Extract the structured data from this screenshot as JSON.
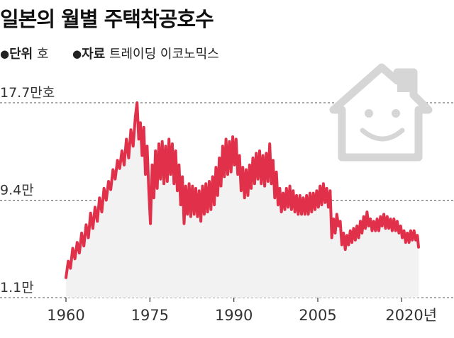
{
  "header": {
    "title": "일본의 월별 주택착공호수",
    "unit_key": "단위",
    "unit_value": "호",
    "source_key": "자료",
    "source_value": "트레이딩 이코노믹스",
    "bullet": "●"
  },
  "icon": "house-smiley-icon",
  "colors": {
    "line": "#e0304a",
    "area": "#f2f2f2",
    "grid": "#555555",
    "axis": "#333333",
    "icon": "#d6d6d6"
  },
  "chart_data": {
    "type": "line",
    "title": "일본의 월별 주택착공호수",
    "ylabel": "",
    "xlabel": "",
    "y_ticks": [
      {
        "value": 1.1,
        "label": "1.1만"
      },
      {
        "value": 9.4,
        "label": "9.4만"
      },
      {
        "value": 17.7,
        "label": "17.7만호"
      }
    ],
    "x_ticks": [
      {
        "value": 1960,
        "label": "1960"
      },
      {
        "value": 1975,
        "label": "1975"
      },
      {
        "value": 1990,
        "label": "1990"
      },
      {
        "value": 2005,
        "label": "2005"
      },
      {
        "value": 2020,
        "label": "2020년"
      }
    ],
    "xlim": [
      1960,
      2023
    ],
    "ylim": [
      1.1,
      17.7
    ],
    "grid": "dashed horizontal at y-ticks",
    "series": [
      {
        "unit": "만호",
        "points": [
          [
            1960.0,
            2.8
          ],
          [
            1960.4,
            4.2
          ],
          [
            1960.8,
            3.6
          ],
          [
            1961.2,
            5.3
          ],
          [
            1961.6,
            4.4
          ],
          [
            1962.0,
            5.8
          ],
          [
            1962.4,
            4.9
          ],
          [
            1962.8,
            6.6
          ],
          [
            1963.2,
            5.5
          ],
          [
            1963.6,
            7.3
          ],
          [
            1964.0,
            6.2
          ],
          [
            1964.4,
            8.3
          ],
          [
            1964.8,
            7.0
          ],
          [
            1965.2,
            8.8
          ],
          [
            1965.6,
            7.6
          ],
          [
            1966.0,
            9.6
          ],
          [
            1966.4,
            8.4
          ],
          [
            1966.8,
            10.4
          ],
          [
            1967.2,
            9.4
          ],
          [
            1967.6,
            11.0
          ],
          [
            1968.0,
            10.3
          ],
          [
            1968.4,
            12.0
          ],
          [
            1968.8,
            11.2
          ],
          [
            1969.2,
            12.8
          ],
          [
            1969.6,
            12.1
          ],
          [
            1970.0,
            13.6
          ],
          [
            1970.4,
            12.4
          ],
          [
            1970.8,
            14.6
          ],
          [
            1971.2,
            13.0
          ],
          [
            1971.6,
            15.4
          ],
          [
            1972.0,
            14.0
          ],
          [
            1972.4,
            16.5
          ],
          [
            1972.7,
            17.7
          ],
          [
            1973.0,
            14.6
          ],
          [
            1973.3,
            16.0
          ],
          [
            1973.6,
            13.2
          ],
          [
            1973.9,
            15.6
          ],
          [
            1974.2,
            11.6
          ],
          [
            1974.5,
            14.0
          ],
          [
            1974.8,
            10.2
          ],
          [
            1975.1,
            7.4
          ],
          [
            1975.4,
            12.4
          ],
          [
            1975.7,
            9.6
          ],
          [
            1976.0,
            13.6
          ],
          [
            1976.3,
            10.4
          ],
          [
            1976.6,
            14.2
          ],
          [
            1976.9,
            11.2
          ],
          [
            1977.2,
            14.4
          ],
          [
            1977.5,
            10.8
          ],
          [
            1977.8,
            14.0
          ],
          [
            1978.1,
            11.0
          ],
          [
            1978.4,
            14.6
          ],
          [
            1978.7,
            11.6
          ],
          [
            1979.0,
            14.2
          ],
          [
            1979.3,
            10.8
          ],
          [
            1979.6,
            13.6
          ],
          [
            1979.9,
            10.2
          ],
          [
            1980.2,
            12.4
          ],
          [
            1980.5,
            9.0
          ],
          [
            1980.8,
            11.4
          ],
          [
            1981.1,
            7.4
          ],
          [
            1981.4,
            10.6
          ],
          [
            1981.7,
            8.2
          ],
          [
            1982.0,
            10.8
          ],
          [
            1982.3,
            8.0
          ],
          [
            1982.6,
            10.6
          ],
          [
            1982.9,
            8.2
          ],
          [
            1983.2,
            10.4
          ],
          [
            1983.5,
            8.0
          ],
          [
            1983.8,
            10.2
          ],
          [
            1984.1,
            7.6
          ],
          [
            1984.4,
            10.6
          ],
          [
            1984.7,
            8.2
          ],
          [
            1985.0,
            10.8
          ],
          [
            1985.3,
            8.4
          ],
          [
            1985.6,
            11.0
          ],
          [
            1985.9,
            8.6
          ],
          [
            1986.2,
            11.4
          ],
          [
            1986.5,
            9.0
          ],
          [
            1986.8,
            12.2
          ],
          [
            1987.1,
            9.8
          ],
          [
            1987.4,
            13.0
          ],
          [
            1987.7,
            10.6
          ],
          [
            1988.0,
            14.0
          ],
          [
            1988.3,
            11.4
          ],
          [
            1988.6,
            14.6
          ],
          [
            1988.9,
            11.6
          ],
          [
            1989.2,
            14.4
          ],
          [
            1989.5,
            11.8
          ],
          [
            1989.8,
            14.8
          ],
          [
            1990.1,
            12.4
          ],
          [
            1990.4,
            14.6
          ],
          [
            1990.7,
            11.6
          ],
          [
            1991.0,
            13.2
          ],
          [
            1991.3,
            10.2
          ],
          [
            1991.6,
            12.2
          ],
          [
            1991.9,
            9.6
          ],
          [
            1992.2,
            12.0
          ],
          [
            1992.5,
            9.8
          ],
          [
            1992.8,
            12.4
          ],
          [
            1993.1,
            10.4
          ],
          [
            1993.4,
            13.0
          ],
          [
            1993.7,
            10.8
          ],
          [
            1994.0,
            13.4
          ],
          [
            1994.3,
            11.2
          ],
          [
            1994.6,
            13.6
          ],
          [
            1994.9,
            10.8
          ],
          [
            1995.2,
            13.2
          ],
          [
            1995.5,
            10.6
          ],
          [
            1995.8,
            13.4
          ],
          [
            1996.1,
            11.0
          ],
          [
            1996.4,
            14.2
          ],
          [
            1996.7,
            10.8
          ],
          [
            1997.0,
            12.8
          ],
          [
            1997.3,
            9.6
          ],
          [
            1997.6,
            11.8
          ],
          [
            1997.9,
            9.0
          ],
          [
            1998.2,
            10.4
          ],
          [
            1998.5,
            8.4
          ],
          [
            1998.8,
            10.0
          ],
          [
            1999.1,
            8.6
          ],
          [
            1999.4,
            10.4
          ],
          [
            1999.7,
            8.8
          ],
          [
            2000.0,
            10.6
          ],
          [
            2000.3,
            8.6
          ],
          [
            2000.6,
            10.2
          ],
          [
            2000.9,
            8.4
          ],
          [
            2001.2,
            9.8
          ],
          [
            2001.5,
            8.2
          ],
          [
            2001.8,
            9.8
          ],
          [
            2002.1,
            8.2
          ],
          [
            2002.4,
            9.6
          ],
          [
            2002.7,
            8.2
          ],
          [
            2003.0,
            9.8
          ],
          [
            2003.3,
            8.2
          ],
          [
            2003.6,
            10.0
          ],
          [
            2003.9,
            8.4
          ],
          [
            2004.2,
            10.0
          ],
          [
            2004.5,
            8.6
          ],
          [
            2004.8,
            10.2
          ],
          [
            2005.1,
            8.8
          ],
          [
            2005.4,
            10.6
          ],
          [
            2005.7,
            9.0
          ],
          [
            2006.0,
            10.8
          ],
          [
            2006.3,
            9.2
          ],
          [
            2006.6,
            10.4
          ],
          [
            2006.9,
            8.8
          ],
          [
            2007.2,
            10.2
          ],
          [
            2007.5,
            6.2
          ],
          [
            2007.8,
            7.8
          ],
          [
            2008.1,
            6.6
          ],
          [
            2008.4,
            8.2
          ],
          [
            2008.7,
            7.2
          ],
          [
            2009.0,
            7.6
          ],
          [
            2009.3,
            5.6
          ],
          [
            2009.6,
            6.6
          ],
          [
            2009.9,
            5.2
          ],
          [
            2010.2,
            6.4
          ],
          [
            2010.5,
            5.6
          ],
          [
            2010.8,
            6.8
          ],
          [
            2011.1,
            5.8
          ],
          [
            2011.4,
            7.0
          ],
          [
            2011.7,
            6.0
          ],
          [
            2012.0,
            7.2
          ],
          [
            2012.3,
            6.2
          ],
          [
            2012.6,
            7.6
          ],
          [
            2012.9,
            6.6
          ],
          [
            2013.2,
            8.0
          ],
          [
            2013.5,
            7.0
          ],
          [
            2013.8,
            8.4
          ],
          [
            2014.1,
            7.2
          ],
          [
            2014.4,
            7.8
          ],
          [
            2014.7,
            6.8
          ],
          [
            2015.0,
            7.6
          ],
          [
            2015.3,
            6.8
          ],
          [
            2015.6,
            7.8
          ],
          [
            2015.9,
            6.8
          ],
          [
            2016.2,
            8.0
          ],
          [
            2016.5,
            7.2
          ],
          [
            2016.8,
            8.2
          ],
          [
            2017.1,
            7.0
          ],
          [
            2017.4,
            8.0
          ],
          [
            2017.7,
            7.0
          ],
          [
            2018.0,
            7.8
          ],
          [
            2018.3,
            6.8
          ],
          [
            2018.6,
            7.8
          ],
          [
            2018.9,
            6.8
          ],
          [
            2019.2,
            7.6
          ],
          [
            2019.5,
            6.6
          ],
          [
            2019.8,
            7.2
          ],
          [
            2020.1,
            6.2
          ],
          [
            2020.4,
            6.8
          ],
          [
            2020.7,
            5.8
          ],
          [
            2021.0,
            6.6
          ],
          [
            2021.3,
            5.8
          ],
          [
            2021.6,
            6.8
          ],
          [
            2021.9,
            6.0
          ],
          [
            2022.2,
            6.8
          ],
          [
            2022.5,
            6.0
          ],
          [
            2022.8,
            6.4
          ],
          [
            2023.0,
            5.4
          ]
        ]
      }
    ]
  }
}
